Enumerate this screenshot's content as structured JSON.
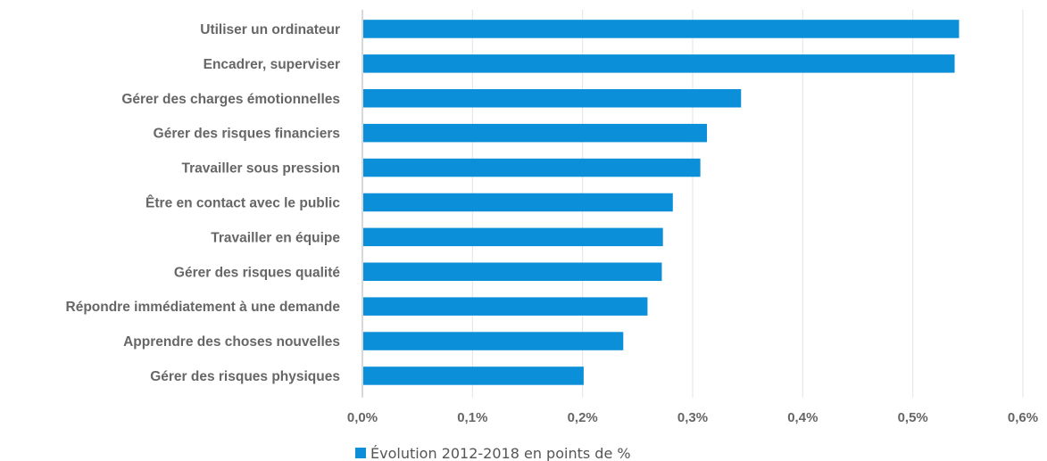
{
  "chart_data": {
    "type": "bar",
    "orientation": "horizontal",
    "categories": [
      "Utiliser un ordinateur",
      "Encadrer, superviser",
      "Gérer des charges émotionnelles",
      "Gérer des risques financiers",
      "Travailler sous pression",
      "Être en contact avec le public",
      "Travailler en équipe",
      "Gérer des risques qualité",
      "Répondre immédiatement à une demande",
      "Apprendre des choses nouvelles",
      "Gérer des risques physiques"
    ],
    "series": [
      {
        "name": "Évolution 2012-2018 en points de %",
        "values": [
          0.542,
          0.538,
          0.344,
          0.313,
          0.307,
          0.282,
          0.273,
          0.272,
          0.259,
          0.237,
          0.201
        ]
      }
    ],
    "xlim": [
      0,
      0.6
    ],
    "xticks": [
      0,
      0.1,
      0.2,
      0.3,
      0.4,
      0.5,
      0.6
    ],
    "xtick_labels": [
      "0,0%",
      "0,1%",
      "0,2%",
      "0,3%",
      "0,4%",
      "0,5%",
      "0,6%"
    ],
    "grid": "vertical",
    "legend_position": "bottom",
    "colors": {
      "bar": "#0b8fd8",
      "grid": "#e3e3e3",
      "axis": "#bfbfbf",
      "text": "#666666"
    }
  }
}
